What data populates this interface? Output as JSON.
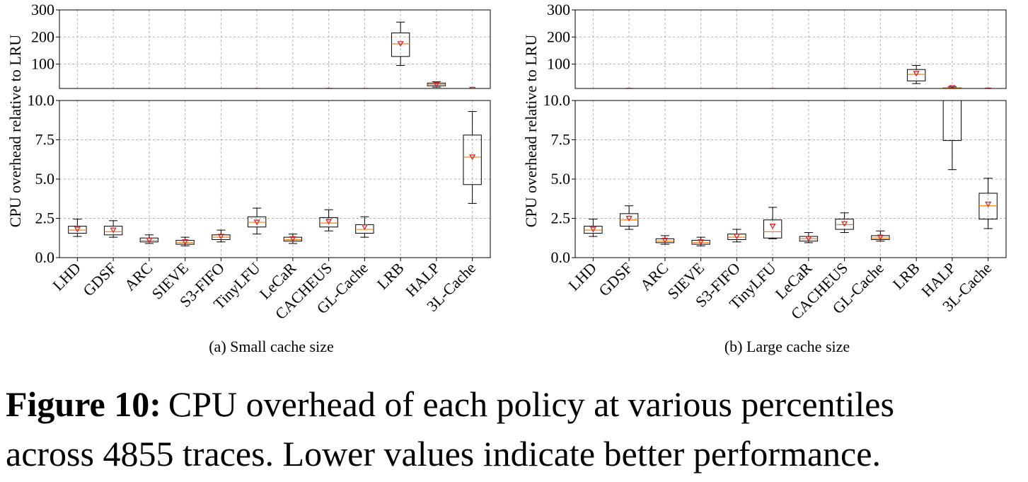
{
  "chart_data": [
    {
      "type": "box",
      "title": "(a) Small cache size",
      "ylabel": "CPU overhead relative to LRU",
      "categories": [
        "LHD",
        "GDSF",
        "ARC",
        "SIEVE",
        "S3-FIFO",
        "TinyLFU",
        "LeCaR",
        "CACHEUS",
        "GL-Cache",
        "LRB",
        "HALP",
        "3L-Cache"
      ],
      "boxes": [
        {
          "low": 1.35,
          "q1": 1.55,
          "median": 1.75,
          "q3": 2.0,
          "high": 2.45,
          "mean": 1.8
        },
        {
          "low": 1.3,
          "q1": 1.45,
          "median": 1.65,
          "q3": 2.0,
          "high": 2.35,
          "mean": 1.75
        },
        {
          "low": 0.9,
          "q1": 1.0,
          "median": 1.1,
          "q3": 1.25,
          "high": 1.45,
          "mean": 1.1
        },
        {
          "low": 0.75,
          "q1": 0.85,
          "median": 0.95,
          "q3": 1.1,
          "high": 1.3,
          "mean": 1.0
        },
        {
          "low": 1.0,
          "q1": 1.15,
          "median": 1.3,
          "q3": 1.45,
          "high": 1.75,
          "mean": 1.35
        },
        {
          "low": 1.5,
          "q1": 1.95,
          "median": 2.25,
          "q3": 2.6,
          "high": 3.15,
          "mean": 2.25
        },
        {
          "low": 0.9,
          "q1": 1.05,
          "median": 1.15,
          "q3": 1.3,
          "high": 1.5,
          "mean": 1.2
        },
        {
          "low": 1.7,
          "q1": 1.95,
          "median": 2.2,
          "q3": 2.55,
          "high": 3.05,
          "mean": 2.3
        },
        {
          "low": 1.3,
          "q1": 1.55,
          "median": 1.8,
          "q3": 2.1,
          "high": 2.6,
          "mean": 1.95
        },
        {
          "low": 95,
          "q1": 128,
          "median": 175,
          "q3": 215,
          "high": 255,
          "mean": 175
        },
        {
          "low": 15,
          "q1": 20,
          "median": 25,
          "q3": 30,
          "high": 35,
          "mean": 25
        },
        {
          "low": 3.45,
          "q1": 4.65,
          "median": 6.4,
          "q3": 7.8,
          "high": 9.3,
          "mean": 6.4
        }
      ],
      "panels": [
        {
          "ylim": [
            10,
            300
          ],
          "yticks": [
            100,
            200,
            300
          ]
        },
        {
          "ylim": [
            0,
            10
          ],
          "yticks": [
            {
              "value": 0,
              "label": "0.0"
            },
            {
              "value": 2.5,
              "label": "2.5"
            },
            {
              "value": 5,
              "label": "5.0"
            },
            {
              "value": 7.5,
              "label": "7.5"
            },
            {
              "value": 10,
              "label": "10.0"
            }
          ]
        }
      ],
      "box_color": "#000000",
      "median_color": "#ff7f0e",
      "mean_color": "#d62728",
      "grid": true
    },
    {
      "type": "box",
      "title": "(b) Large cache size",
      "ylabel": "CPU overhead relative to LRU",
      "categories": [
        "LHD",
        "GDSF",
        "ARC",
        "SIEVE",
        "S3-FIFO",
        "TinyLFU",
        "LeCaR",
        "CACHEUS",
        "GL-Cache",
        "LRB",
        "HALP",
        "3L-Cache"
      ],
      "boxes": [
        {
          "low": 1.35,
          "q1": 1.55,
          "median": 1.75,
          "q3": 2.0,
          "high": 2.45,
          "mean": 1.8
        },
        {
          "low": 1.8,
          "q1": 2.0,
          "median": 2.4,
          "q3": 2.8,
          "high": 3.3,
          "mean": 2.5
        },
        {
          "low": 0.85,
          "q1": 0.95,
          "median": 1.05,
          "q3": 1.2,
          "high": 1.4,
          "mean": 1.1
        },
        {
          "low": 0.75,
          "q1": 0.85,
          "median": 0.95,
          "q3": 1.1,
          "high": 1.3,
          "mean": 1.0
        },
        {
          "low": 1.0,
          "q1": 1.15,
          "median": 1.3,
          "q3": 1.5,
          "high": 1.8,
          "mean": 1.35
        },
        {
          "low": 1.2,
          "q1": 1.25,
          "median": 1.65,
          "q3": 2.4,
          "high": 3.2,
          "mean": 2.0
        },
        {
          "low": 0.95,
          "q1": 1.05,
          "median": 1.2,
          "q3": 1.35,
          "high": 1.6,
          "mean": 1.2
        },
        {
          "low": 1.6,
          "q1": 1.8,
          "median": 2.1,
          "q3": 2.45,
          "high": 2.85,
          "mean": 2.15
        },
        {
          "low": 1.05,
          "q1": 1.15,
          "median": 1.25,
          "q3": 1.4,
          "high": 1.7,
          "mean": 1.3
        },
        {
          "low": 28,
          "q1": 38,
          "median": 62,
          "q3": 80,
          "high": 95,
          "mean": 65
        },
        {
          "low": 5.6,
          "q1": 7.45,
          "median": 11,
          "q3": 12,
          "high": 16,
          "mean": 13
        },
        {
          "low": 1.85,
          "q1": 2.45,
          "median": 3.3,
          "q3": 4.1,
          "high": 5.05,
          "mean": 3.4
        }
      ],
      "panels": [
        {
          "ylim": [
            10,
            300
          ],
          "yticks": [
            100,
            200,
            300
          ]
        },
        {
          "ylim": [
            0,
            10
          ],
          "yticks": [
            {
              "value": 0,
              "label": "0.0"
            },
            {
              "value": 2.5,
              "label": "2.5"
            },
            {
              "value": 5,
              "label": "5.0"
            },
            {
              "value": 7.5,
              "label": "7.5"
            },
            {
              "value": 10,
              "label": "10.0"
            }
          ]
        }
      ],
      "box_color": "#000000",
      "median_color": "#ff7f0e",
      "mean_color": "#d62728",
      "grid": true
    }
  ],
  "caption": {
    "label": "Figure 10:",
    "line1": "CPU overhead of each policy at various percentiles",
    "line2": "across 4855 traces. Lower values indicate better performance."
  }
}
